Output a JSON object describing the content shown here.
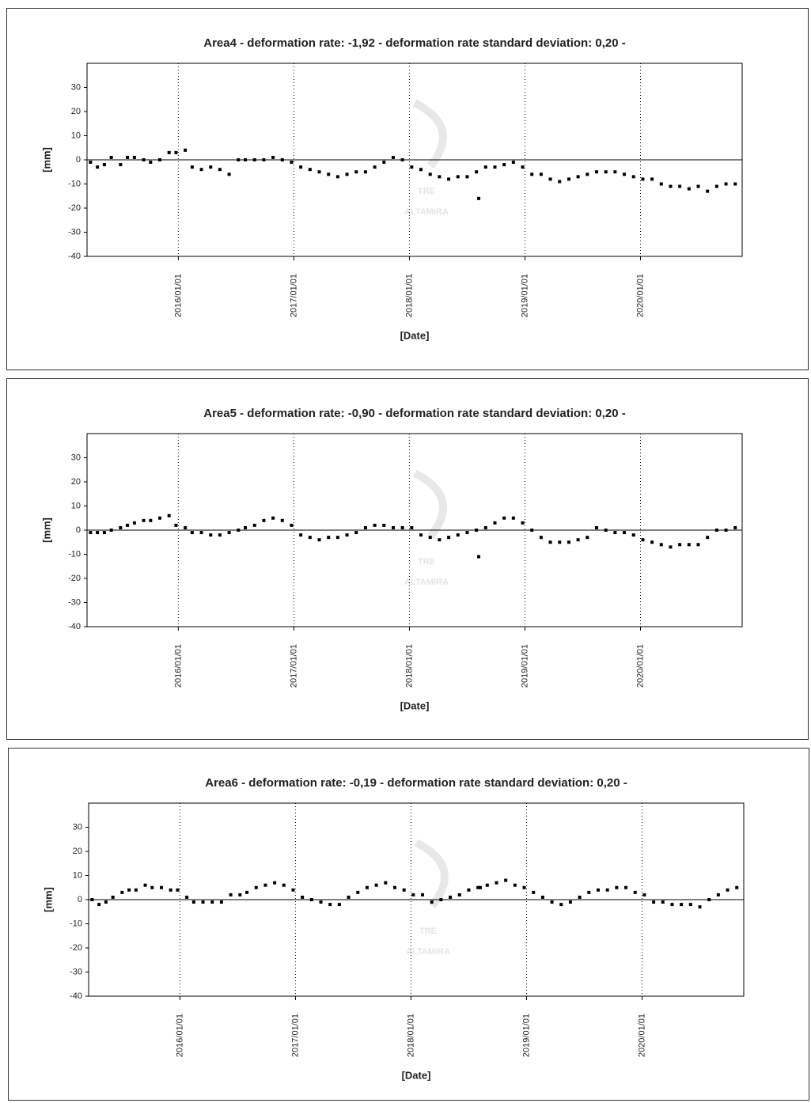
{
  "chart_data": [
    {
      "type": "scatter",
      "title": "Area4 - deformation rate: -1,92 - deformation rate standard deviation: 0,20 -",
      "x_label": "[Date]",
      "y_label": "[mm]",
      "watermark": {
        "logo": "TRE",
        "text": "ALTAMIRA"
      },
      "color": "#000000",
      "xlim": [
        2015.21,
        2020.88
      ],
      "ylim": [
        -40,
        40
      ],
      "xticks": [
        {
          "value": 2016,
          "label": "2016/01/01"
        },
        {
          "value": 2017,
          "label": "2017/01/01"
        },
        {
          "value": 2018,
          "label": "2018/01/01"
        },
        {
          "value": 2019,
          "label": "2019/01/01"
        },
        {
          "value": 2020,
          "label": "2020/01/01"
        }
      ],
      "yticks": [
        -40,
        -30,
        -20,
        -10,
        0,
        10,
        20,
        30
      ],
      "x": [
        2015.24,
        2015.3,
        2015.36,
        2015.42,
        2015.5,
        2015.56,
        2015.62,
        2015.7,
        2015.76,
        2015.84,
        2015.92,
        2015.98,
        2016.06,
        2016.12,
        2016.2,
        2016.28,
        2016.36,
        2016.44,
        2016.52,
        2016.58,
        2016.66,
        2016.74,
        2016.82,
        2016.9,
        2016.98,
        2017.06,
        2017.14,
        2017.22,
        2017.3,
        2017.38,
        2017.46,
        2017.54,
        2017.62,
        2017.7,
        2017.78,
        2017.86,
        2017.94,
        2018.02,
        2018.1,
        2018.18,
        2018.26,
        2018.34,
        2018.42,
        2018.5,
        2018.58,
        2018.6,
        2018.66,
        2018.74,
        2018.82,
        2018.9,
        2018.98,
        2019.06,
        2019.14,
        2019.22,
        2019.3,
        2019.38,
        2019.46,
        2019.54,
        2019.62,
        2019.7,
        2019.78,
        2019.86,
        2019.94,
        2020.02,
        2020.1,
        2020.18,
        2020.26,
        2020.34,
        2020.42,
        2020.5,
        2020.58,
        2020.66,
        2020.74,
        2020.82
      ],
      "values": [
        -1,
        -3,
        -2,
        1,
        -2,
        1,
        1,
        0,
        -1,
        0,
        3,
        3,
        4,
        -3,
        -4,
        -3,
        -4,
        -6,
        0,
        0,
        0,
        0,
        1,
        0,
        -1,
        -3,
        -4,
        -5,
        -6,
        -7,
        -6,
        -5,
        -5,
        -3,
        -1,
        1,
        0,
        -3,
        -4,
        -6,
        -7,
        -8,
        -7,
        -7,
        -5,
        -16,
        -3,
        -3,
        -2,
        -1,
        -3,
        -6,
        -6,
        -8,
        -9,
        -8,
        -7,
        -6,
        -5,
        -5,
        -5,
        -6,
        -7,
        -8,
        -8,
        -10,
        -11,
        -11,
        -12,
        -11,
        -13,
        -11,
        -10,
        -10
      ]
    },
    {
      "type": "scatter",
      "title": "Area5 - deformation rate: -0,90 - deformation rate standard deviation: 0,20 -",
      "x_label": "[Date]",
      "y_label": "[mm]",
      "watermark": {
        "logo": "TRE",
        "text": "ALTAMIRA"
      },
      "color": "#000000",
      "xlim": [
        2015.21,
        2020.88
      ],
      "ylim": [
        -40,
        40
      ],
      "xticks": [
        {
          "value": 2016,
          "label": "2016/01/01"
        },
        {
          "value": 2017,
          "label": "2017/01/01"
        },
        {
          "value": 2018,
          "label": "2018/01/01"
        },
        {
          "value": 2019,
          "label": "2019/01/01"
        },
        {
          "value": 2020,
          "label": "2020/01/01"
        }
      ],
      "yticks": [
        -40,
        -30,
        -20,
        -10,
        0,
        10,
        20,
        30
      ],
      "x": [
        2015.24,
        2015.3,
        2015.36,
        2015.42,
        2015.5,
        2015.56,
        2015.62,
        2015.7,
        2015.76,
        2015.84,
        2015.92,
        2015.98,
        2016.06,
        2016.12,
        2016.2,
        2016.28,
        2016.36,
        2016.44,
        2016.52,
        2016.58,
        2016.66,
        2016.74,
        2016.82,
        2016.9,
        2016.98,
        2017.06,
        2017.14,
        2017.22,
        2017.3,
        2017.38,
        2017.46,
        2017.54,
        2017.62,
        2017.7,
        2017.78,
        2017.86,
        2017.94,
        2018.02,
        2018.1,
        2018.18,
        2018.26,
        2018.34,
        2018.42,
        2018.5,
        2018.58,
        2018.6,
        2018.66,
        2018.74,
        2018.82,
        2018.9,
        2018.98,
        2019.06,
        2019.14,
        2019.22,
        2019.3,
        2019.38,
        2019.46,
        2019.54,
        2019.62,
        2019.7,
        2019.78,
        2019.86,
        2019.94,
        2020.02,
        2020.1,
        2020.18,
        2020.26,
        2020.34,
        2020.42,
        2020.5,
        2020.58,
        2020.66,
        2020.74,
        2020.82
      ],
      "values": [
        -1,
        -1,
        -1,
        0,
        1,
        2,
        3,
        4,
        4,
        5,
        6,
        2,
        1,
        -1,
        -1,
        -2,
        -2,
        -1,
        0,
        1,
        2,
        4,
        5,
        4,
        2,
        -2,
        -3,
        -4,
        -3,
        -3,
        -2,
        -1,
        1,
        2,
        2,
        1,
        1,
        1,
        -2,
        -3,
        -4,
        -3,
        -2,
        -1,
        0,
        -11,
        1,
        3,
        5,
        5,
        3,
        0,
        -3,
        -5,
        -5,
        -5,
        -4,
        -3,
        1,
        0,
        -1,
        -1,
        -2,
        -4,
        -5,
        -6,
        -7,
        -6,
        -6,
        -6,
        -3,
        0,
        0,
        1
      ]
    },
    {
      "type": "scatter",
      "title": "Area6 - deformation rate: -0,19 - deformation rate standard deviation: 0,20 -",
      "x_label": "[Date]",
      "y_label": "[mm]",
      "watermark": {
        "logo": "TRE",
        "text": "ALTAMIRA"
      },
      "color": "#000000",
      "xlim": [
        2015.21,
        2020.88
      ],
      "ylim": [
        -40,
        40
      ],
      "xticks": [
        {
          "value": 2016,
          "label": "2016/01/01"
        },
        {
          "value": 2017,
          "label": "2017/01/01"
        },
        {
          "value": 2018,
          "label": "2018/01/01"
        },
        {
          "value": 2019,
          "label": "2019/01/01"
        },
        {
          "value": 2020,
          "label": "2020/01/01"
        }
      ],
      "yticks": [
        -40,
        -30,
        -20,
        -10,
        0,
        10,
        20,
        30
      ],
      "x": [
        2015.24,
        2015.3,
        2015.36,
        2015.42,
        2015.5,
        2015.56,
        2015.62,
        2015.7,
        2015.76,
        2015.84,
        2015.92,
        2015.98,
        2016.06,
        2016.12,
        2016.2,
        2016.28,
        2016.36,
        2016.44,
        2016.52,
        2016.58,
        2016.66,
        2016.74,
        2016.82,
        2016.9,
        2016.98,
        2017.06,
        2017.14,
        2017.22,
        2017.3,
        2017.38,
        2017.46,
        2017.54,
        2017.62,
        2017.7,
        2017.78,
        2017.86,
        2017.94,
        2018.02,
        2018.1,
        2018.18,
        2018.26,
        2018.34,
        2018.42,
        2018.5,
        2018.58,
        2018.6,
        2018.66,
        2018.74,
        2018.82,
        2018.9,
        2018.98,
        2019.06,
        2019.14,
        2019.22,
        2019.3,
        2019.38,
        2019.46,
        2019.54,
        2019.62,
        2019.7,
        2019.78,
        2019.86,
        2019.94,
        2020.02,
        2020.1,
        2020.18,
        2020.26,
        2020.34,
        2020.42,
        2020.5,
        2020.58,
        2020.66,
        2020.74,
        2020.82
      ],
      "values": [
        0,
        -2,
        -1,
        1,
        3,
        4,
        4,
        6,
        5,
        5,
        4,
        4,
        1,
        -1,
        -1,
        -1,
        -1,
        2,
        2,
        3,
        5,
        6,
        7,
        6,
        4,
        1,
        0,
        -1,
        -2,
        -2,
        1,
        3,
        5,
        6,
        7,
        5,
        4,
        2,
        2,
        -1,
        0,
        1,
        2,
        4,
        5,
        5,
        6,
        7,
        8,
        6,
        5,
        3,
        1,
        -1,
        -2,
        -1,
        1,
        3,
        4,
        4,
        5,
        5,
        3,
        2,
        -1,
        -1,
        -2,
        -2,
        -2,
        -3,
        0,
        2,
        4,
        5
      ]
    }
  ]
}
